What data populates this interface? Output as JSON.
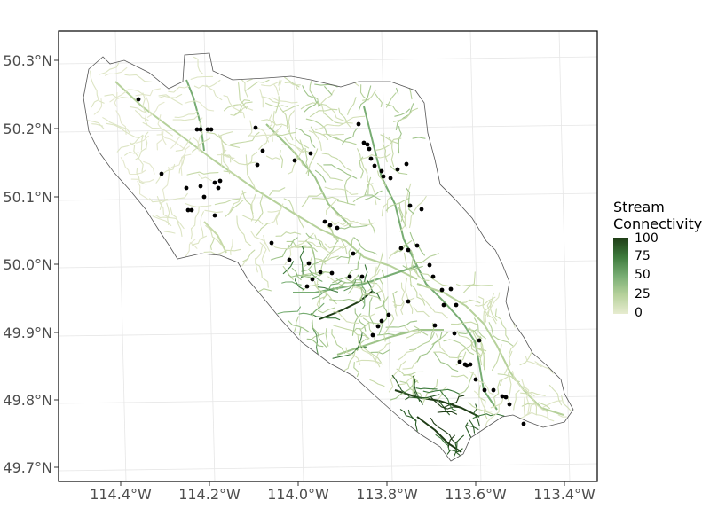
{
  "map": {
    "lat_labels": [
      "50.3°N",
      "50.2°N",
      "50.1°N",
      "50.0°N",
      "49.9°N",
      "49.8°N",
      "49.7°N"
    ],
    "lon_labels": [
      "114.4°W",
      "114.2°W",
      "114.0°W",
      "113.8°W",
      "113.6°W",
      "113.4°W"
    ],
    "lat_range": [
      49.67,
      50.34
    ],
    "lon_range": [
      -114.54,
      -113.32
    ],
    "grid": true
  },
  "legend": {
    "title_line1": "Stream",
    "title_line2": "Connectivity",
    "ticks": [
      "100",
      "75",
      "50",
      "25",
      "0"
    ],
    "color_low": "#e7ecd0",
    "color_high": "#1f3d16"
  },
  "colors": {
    "boundary": "#555555",
    "site_point": "#000000",
    "grid": "#e6e6e6",
    "frame": "#000000"
  }
}
